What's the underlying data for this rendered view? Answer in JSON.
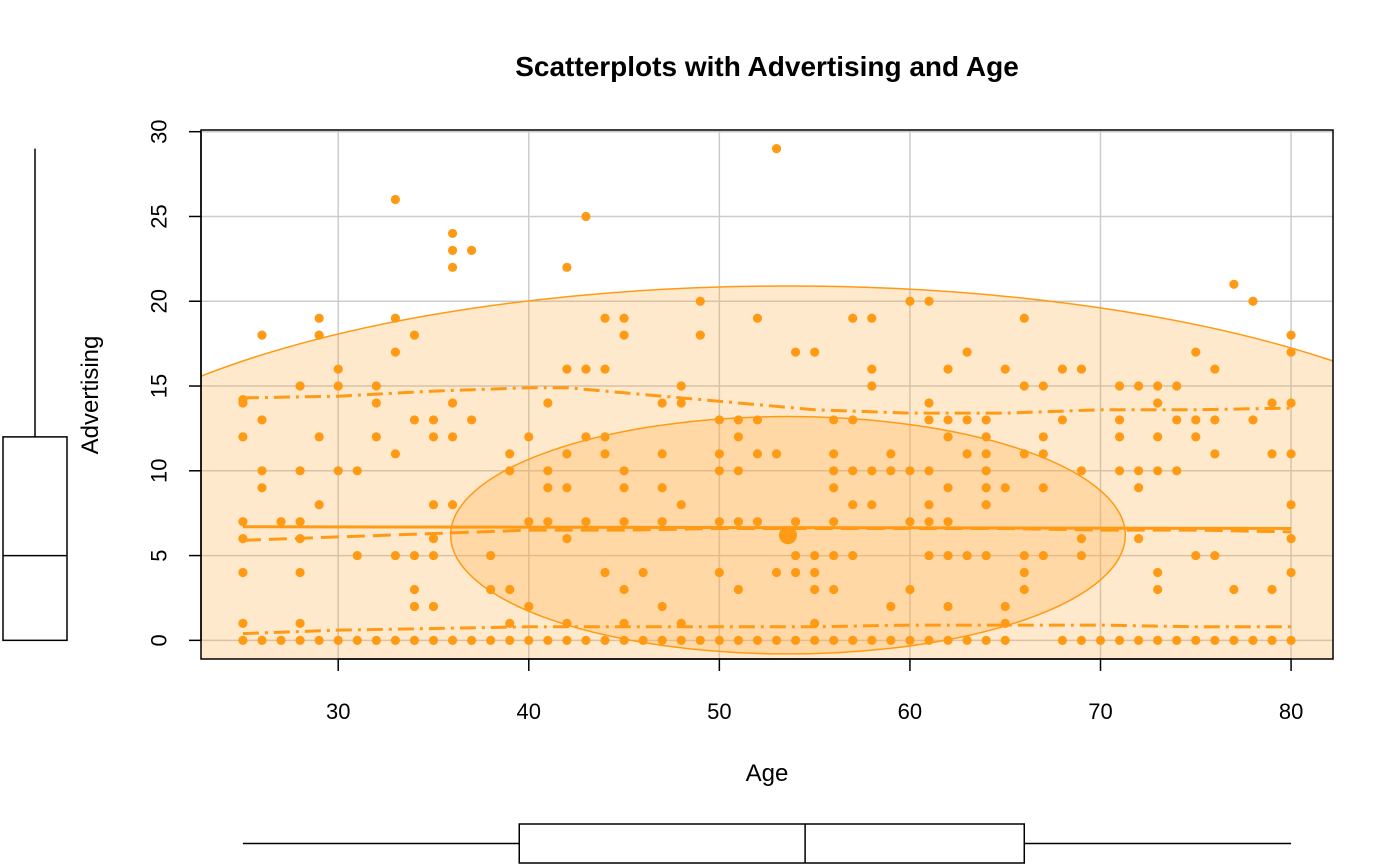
{
  "chart_data": {
    "type": "scatter",
    "title": "Scatterplots with Advertising and Age",
    "xlabel": "Age",
    "ylabel": "Advertising",
    "xlim": [
      22.8,
      82.2
    ],
    "ylim": [
      -1.1,
      30.1
    ],
    "x_ticks": [
      30,
      40,
      50,
      60,
      70,
      80
    ],
    "y_ticks": [
      0,
      5,
      10,
      15,
      20,
      25,
      30
    ],
    "grid": true,
    "color": "#ff9a14",
    "fill_color": "#ffa733",
    "centroid": {
      "x": 53.6,
      "y": 6.2
    },
    "regression_line": {
      "x": [
        25,
        80
      ],
      "y": [
        6.7,
        6.6
      ]
    },
    "smooth_center": {
      "x": [
        25,
        30,
        35,
        40,
        45,
        50,
        55,
        60,
        65,
        70,
        75,
        80
      ],
      "y": [
        5.9,
        6.1,
        6.3,
        6.5,
        6.5,
        6.6,
        6.6,
        6.6,
        6.6,
        6.5,
        6.5,
        6.4
      ]
    },
    "smooth_upper": {
      "x": [
        25,
        30,
        35,
        40,
        42,
        45,
        50,
        55,
        60,
        65,
        70,
        75,
        80
      ],
      "y": [
        14.3,
        14.4,
        14.7,
        14.9,
        14.9,
        14.6,
        14.1,
        13.6,
        13.4,
        13.4,
        13.6,
        13.6,
        13.7
      ]
    },
    "smooth_lower": {
      "x": [
        25,
        30,
        35,
        40,
        45,
        50,
        55,
        60,
        65,
        70,
        75,
        80
      ],
      "y": [
        0.4,
        0.6,
        0.7,
        0.8,
        0.8,
        0.8,
        0.8,
        0.9,
        0.9,
        0.9,
        0.8,
        0.8
      ]
    },
    "ellipses": [
      {
        "level": 0.5,
        "cx": 53.6,
        "cy": 6.2,
        "rx": 17.7,
        "ry": 7.0
      },
      {
        "level": 0.95,
        "cx": 53.6,
        "cy": 6.2,
        "rx": 40.0,
        "ry": 14.7
      }
    ],
    "x_boxplot": {
      "min": 25,
      "q1": 39.5,
      "median": 54.5,
      "q3": 66,
      "max": 80
    },
    "y_boxplot": {
      "min": 0,
      "q1": 0,
      "median": 5,
      "q3": 12,
      "max": 29
    },
    "points": [
      [
        25,
        14
      ],
      [
        25,
        12
      ],
      [
        25,
        7
      ],
      [
        25,
        6
      ],
      [
        25,
        4
      ],
      [
        25,
        1
      ],
      [
        25,
        0
      ],
      [
        25,
        14.2
      ],
      [
        26,
        18
      ],
      [
        26,
        13
      ],
      [
        26,
        10
      ],
      [
        26,
        9
      ],
      [
        26,
        0
      ],
      [
        27,
        7
      ],
      [
        27,
        0
      ],
      [
        28,
        15
      ],
      [
        28,
        10
      ],
      [
        28,
        7
      ],
      [
        28,
        6
      ],
      [
        28,
        4
      ],
      [
        28,
        1
      ],
      [
        28,
        0
      ],
      [
        29,
        19
      ],
      [
        29,
        18
      ],
      [
        29,
        12
      ],
      [
        29,
        8
      ],
      [
        29,
        0
      ],
      [
        30,
        16
      ],
      [
        30,
        15
      ],
      [
        30,
        10
      ],
      [
        30,
        0
      ],
      [
        31,
        10
      ],
      [
        31,
        5
      ],
      [
        31,
        0
      ],
      [
        32,
        15
      ],
      [
        32,
        14
      ],
      [
        32,
        12
      ],
      [
        32,
        0
      ],
      [
        33,
        26
      ],
      [
        33,
        19
      ],
      [
        33,
        17
      ],
      [
        33,
        11
      ],
      [
        33,
        5
      ],
      [
        33,
        0
      ],
      [
        34,
        18
      ],
      [
        34,
        13
      ],
      [
        34,
        5
      ],
      [
        34,
        3
      ],
      [
        34,
        2
      ],
      [
        34,
        0
      ],
      [
        35,
        13
      ],
      [
        35,
        12
      ],
      [
        35,
        8
      ],
      [
        35,
        6
      ],
      [
        35,
        5
      ],
      [
        35,
        2
      ],
      [
        35,
        0
      ],
      [
        36,
        24
      ],
      [
        36,
        23
      ],
      [
        36,
        22
      ],
      [
        36,
        14
      ],
      [
        36,
        12
      ],
      [
        36,
        8
      ],
      [
        36,
        0
      ],
      [
        37,
        23
      ],
      [
        37,
        13
      ],
      [
        37,
        0
      ],
      [
        38,
        5
      ],
      [
        38,
        3
      ],
      [
        38,
        0
      ],
      [
        39,
        11
      ],
      [
        39,
        10
      ],
      [
        39,
        3
      ],
      [
        39,
        1
      ],
      [
        39,
        0
      ],
      [
        40,
        12
      ],
      [
        40,
        7
      ],
      [
        40,
        2
      ],
      [
        40,
        0
      ],
      [
        41,
        14
      ],
      [
        41,
        10
      ],
      [
        41,
        9
      ],
      [
        41,
        7
      ],
      [
        41,
        0
      ],
      [
        42,
        22
      ],
      [
        42,
        16
      ],
      [
        42,
        11
      ],
      [
        42,
        9
      ],
      [
        42,
        6
      ],
      [
        42,
        1
      ],
      [
        42,
        0
      ],
      [
        43,
        25
      ],
      [
        43,
        16
      ],
      [
        43,
        12
      ],
      [
        43,
        7
      ],
      [
        43,
        0
      ],
      [
        44,
        19
      ],
      [
        44,
        16
      ],
      [
        44,
        12
      ],
      [
        44,
        11
      ],
      [
        44,
        4
      ],
      [
        44,
        0
      ],
      [
        45,
        19
      ],
      [
        45,
        18
      ],
      [
        45,
        10
      ],
      [
        45,
        9
      ],
      [
        45,
        7
      ],
      [
        45,
        3
      ],
      [
        45,
        1
      ],
      [
        45,
        0
      ],
      [
        46,
        4
      ],
      [
        46,
        0
      ],
      [
        47,
        14
      ],
      [
        47,
        11
      ],
      [
        47,
        9
      ],
      [
        47,
        7
      ],
      [
        47,
        2
      ],
      [
        47,
        0
      ],
      [
        48,
        15
      ],
      [
        48,
        14
      ],
      [
        48,
        8
      ],
      [
        48,
        1
      ],
      [
        48,
        0
      ],
      [
        49,
        20
      ],
      [
        49,
        18
      ],
      [
        49,
        0
      ],
      [
        50,
        13
      ],
      [
        50,
        11
      ],
      [
        50,
        10
      ],
      [
        50,
        7
      ],
      [
        50,
        4
      ],
      [
        50,
        0
      ],
      [
        51,
        13
      ],
      [
        51,
        12
      ],
      [
        51,
        10
      ],
      [
        51,
        7
      ],
      [
        51,
        3
      ],
      [
        51,
        0
      ],
      [
        52,
        19
      ],
      [
        52,
        13
      ],
      [
        52,
        11
      ],
      [
        52,
        7
      ],
      [
        52,
        0
      ],
      [
        53,
        29
      ],
      [
        53,
        11
      ],
      [
        53,
        4
      ],
      [
        53,
        0
      ],
      [
        54,
        17
      ],
      [
        54,
        7
      ],
      [
        54,
        5
      ],
      [
        54,
        4
      ],
      [
        54,
        0
      ],
      [
        55,
        17
      ],
      [
        55,
        5
      ],
      [
        55,
        4
      ],
      [
        55,
        3
      ],
      [
        55,
        1
      ],
      [
        55,
        0
      ],
      [
        56,
        13
      ],
      [
        56,
        11
      ],
      [
        56,
        10
      ],
      [
        56,
        9
      ],
      [
        56,
        7
      ],
      [
        56,
        5
      ],
      [
        56,
        3
      ],
      [
        56,
        0
      ],
      [
        57,
        19
      ],
      [
        57,
        13
      ],
      [
        57,
        10
      ],
      [
        57,
        8
      ],
      [
        57,
        5
      ],
      [
        57,
        0
      ],
      [
        58,
        19
      ],
      [
        58,
        16
      ],
      [
        58,
        15
      ],
      [
        58,
        10
      ],
      [
        58,
        8
      ],
      [
        58,
        0
      ],
      [
        59,
        11
      ],
      [
        59,
        10
      ],
      [
        59,
        2
      ],
      [
        59,
        0
      ],
      [
        60,
        20
      ],
      [
        60,
        10
      ],
      [
        60,
        7
      ],
      [
        60,
        3
      ],
      [
        60,
        0
      ],
      [
        61,
        20
      ],
      [
        61,
        14
      ],
      [
        61,
        13
      ],
      [
        61,
        10
      ],
      [
        61,
        8
      ],
      [
        61,
        7
      ],
      [
        61,
        5
      ],
      [
        61,
        0
      ],
      [
        62,
        16
      ],
      [
        62,
        13
      ],
      [
        62,
        12
      ],
      [
        62,
        9
      ],
      [
        62,
        7
      ],
      [
        62,
        5
      ],
      [
        62,
        2
      ],
      [
        62,
        0
      ],
      [
        63,
        17
      ],
      [
        63,
        13
      ],
      [
        63,
        11
      ],
      [
        63,
        5
      ],
      [
        63,
        0
      ],
      [
        64,
        13
      ],
      [
        64,
        12
      ],
      [
        64,
        11
      ],
      [
        64,
        10
      ],
      [
        64,
        9
      ],
      [
        64,
        8
      ],
      [
        64,
        5
      ],
      [
        64,
        0
      ],
      [
        65,
        16
      ],
      [
        65,
        9
      ],
      [
        65,
        2
      ],
      [
        65,
        1
      ],
      [
        65,
        0
      ],
      [
        66,
        19
      ],
      [
        66,
        15
      ],
      [
        66,
        11
      ],
      [
        66,
        5
      ],
      [
        66,
        4
      ],
      [
        66,
        3
      ],
      [
        67,
        15
      ],
      [
        67,
        12
      ],
      [
        67,
        11
      ],
      [
        67,
        9
      ],
      [
        67,
        5
      ],
      [
        68,
        16
      ],
      [
        68,
        13
      ],
      [
        68,
        0
      ],
      [
        69,
        16
      ],
      [
        69,
        10
      ],
      [
        69,
        6
      ],
      [
        69,
        5
      ],
      [
        69,
        0
      ],
      [
        70,
        0
      ],
      [
        71,
        15
      ],
      [
        71,
        13
      ],
      [
        71,
        12
      ],
      [
        71,
        10
      ],
      [
        71,
        0
      ],
      [
        72,
        15
      ],
      [
        72,
        10
      ],
      [
        72,
        9
      ],
      [
        72,
        6
      ],
      [
        72,
        0
      ],
      [
        73,
        15
      ],
      [
        73,
        14
      ],
      [
        73,
        12
      ],
      [
        73,
        10
      ],
      [
        73,
        4
      ],
      [
        73,
        3
      ],
      [
        73,
        0
      ],
      [
        74,
        15
      ],
      [
        74,
        13
      ],
      [
        74,
        10
      ],
      [
        74,
        0
      ],
      [
        75,
        17
      ],
      [
        75,
        13
      ],
      [
        75,
        12
      ],
      [
        75,
        5
      ],
      [
        75,
        0
      ],
      [
        76,
        16
      ],
      [
        76,
        13
      ],
      [
        76,
        11
      ],
      [
        76,
        5
      ],
      [
        76,
        0
      ],
      [
        77,
        21
      ],
      [
        77,
        3
      ],
      [
        77,
        0
      ],
      [
        78,
        20
      ],
      [
        78,
        13
      ],
      [
        78,
        0
      ],
      [
        79,
        14
      ],
      [
        79,
        11
      ],
      [
        79,
        3
      ],
      [
        79,
        0
      ],
      [
        80,
        18
      ],
      [
        80,
        17
      ],
      [
        80,
        14
      ],
      [
        80,
        11
      ],
      [
        80,
        8
      ],
      [
        80,
        6
      ],
      [
        80,
        4
      ],
      [
        80,
        0
      ]
    ]
  }
}
